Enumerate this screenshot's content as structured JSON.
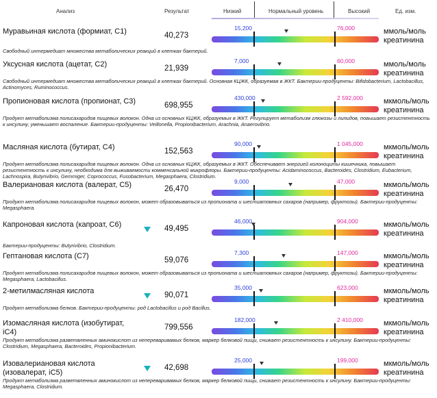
{
  "header": {
    "analysis": "Анализ",
    "result": "Результат",
    "low": "Низкий",
    "normal": "Нормальный уровень",
    "high": "Высокий",
    "unit": "Ед. изм."
  },
  "rows": [
    {
      "name": "Муравьиная кислота (формиат, С1)",
      "value": "40,273",
      "low": "15,200",
      "high": "76,000",
      "unit": "ммоль/моль креатинина",
      "flag": false,
      "marker": 0.41,
      "desc": "Свободный интермедиат множества метаболических реакций в клетках бактерий."
    },
    {
      "name": "Уксусная кислота (ацетат, С2)",
      "value": "21,939",
      "low": "7,000",
      "high": "60,000",
      "unit": "ммоль/моль креатинина",
      "flag": false,
      "marker": 0.32,
      "desc": "Свободный интермедиат множества метаболических реакций в клетках бактерий. Основная КЦЖК, образуемая в ЖКТ. Бактерии-продуценты: Bifidobacterium, Lactobacillus, Actinomyces, Ruminococcus."
    },
    {
      "name": "Пропионовая кислота (пропионат, С3)",
      "value": "698,955",
      "low": "430,000",
      "high": "2 592,000",
      "unit": "мкмоль/моль креатинина",
      "flag": false,
      "marker": 0.12,
      "desc": "Продукт метаболизма полисахаридов пищевых волокон. Одна из основных КЦЖК, образуемых в ЖКТ. Регулирует метаболизм глюкозы и липидов, повышает резистентность к инсулину, уменьшает воспаление. Бактерии-продуценты: Veillonella, Propionibacterium, Arachnia, Anaerovibrio."
    },
    {
      "name": "Масляная кислота (бутират, С4)",
      "value": "152,563",
      "low": "90,000",
      "high": "1 045,000",
      "unit": "мкмоль/моль креатинина",
      "flag": false,
      "marker": 0.07,
      "desc": "Продукт метаболизма полисахаридов пищевых волокон. Одна из основных КЦЖК, образуемых в ЖКТ. Обеспечивает энергией колоноциты кишечника, повышает резистентность к инсулину, необходима для выживаемости комменсальной микрофлоры. Бактерии-продуценты: Acidaminococcus, Bacteroides, Clostridium, Eubacterium, Lachnospira, Butyrivibrio, Gemmiger, Coprococcus, Fusobacterium, Megasphaera, Clostridium."
    },
    {
      "name": "Валериановая кислота (валерат, С5)",
      "value": "26,470",
      "low": "9,000",
      "high": "47,000",
      "unit": "мкмоль/моль креатинина",
      "flag": false,
      "marker": 0.46,
      "desc": "Продукт метаболизма полисахаридов пищевых волокон, может образовываться из пропионата и шестиатомных сахаров (например, фруктозы). Бактерии-продуценты: Megasphaera."
    },
    {
      "name": "Капроновая кислота (капроат, С6)",
      "value": "49,495",
      "low": "46,000",
      "high": "904,000",
      "unit": "мкмоль/моль креатинина",
      "flag": true,
      "marker": 0.004,
      "desc": "Бактерии-продуценты: Butyrivibrio, Clostridium."
    },
    {
      "name": "Гептановая кислота (С7)",
      "value": "59,076",
      "low": "7,300",
      "high": "147,000",
      "unit": "мкмоль/моль креатинина",
      "flag": false,
      "marker": 0.37,
      "desc": "Продукт метаболизма полисахаридов пищевых волокон, может образовываться из пропионата и шестиатомных сахаров (например, фруктозы). Бактерии-продуценты: Megasphaera, Lactobacillus."
    },
    {
      "name": "2-метилмасляная кислота",
      "value": "90,071",
      "low": "35,000",
      "high": "623,000",
      "unit": "мкмоль/моль креатинина",
      "flag": true,
      "marker": 0.09,
      "desc": "Продукт метаболизма белков. Бактерии-продуценты:  род Lactobacillus и род Bacillus."
    },
    {
      "name": "Изомасляная кислота (изобутират, iC4)",
      "value": "799,556",
      "low": "182,000",
      "high": "2 410,000",
      "unit": "мкмоль/моль креатинина",
      "flag": false,
      "marker": 0.28,
      "desc": "Продукт метаболизма разветвленных аминокислот из непереваривамых белков, маркер белковой пищи, снижает резистентность к инсулину. Бактерии-продуценты: Clostridium, Megasphaera, Bacteroides, Propionibacterium."
    },
    {
      "name": "Изовалериановая кислота (изовалерат, iC5)",
      "value": "42,698",
      "low": "25,000",
      "high": "199,000",
      "unit": "мкмоль/моль креатинина",
      "flag": true,
      "marker": 0.1,
      "desc": "Продукт метаболизма разветвленных аминокислот из непереваривамых белков, маркер белковой пищи, снижает резистентность к инсулину. Бактерии-продуценты: Megasphaera, Clostridium."
    }
  ]
}
